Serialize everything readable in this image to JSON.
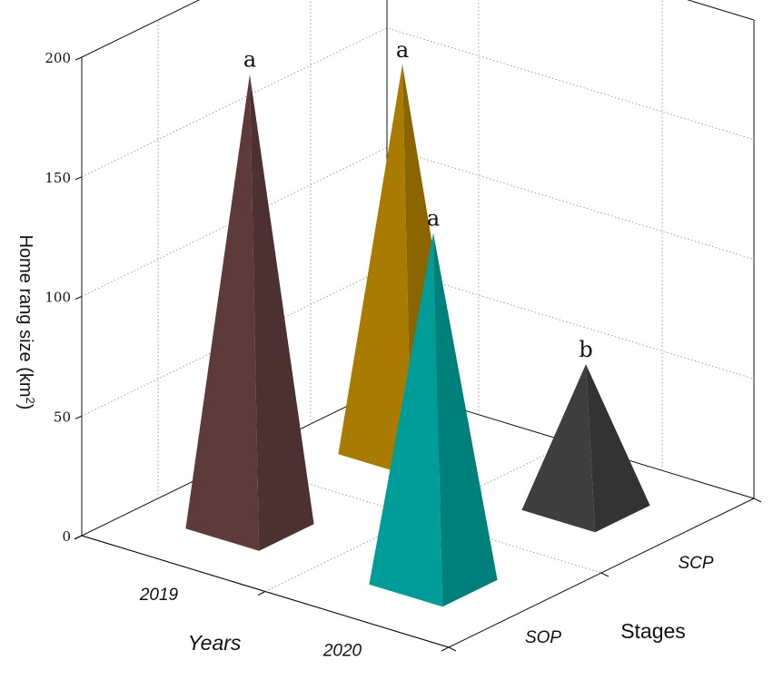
{
  "chart_data": {
    "type": "bar",
    "subtype": "3d-pyramid",
    "title": "",
    "ylabel_main": "Home rang size (km",
    "ylabel_sup": "2",
    "ylabel_tail": ")",
    "zlim": [
      0,
      200
    ],
    "zticks": [
      "0",
      "50",
      "100",
      "150",
      "200"
    ],
    "years_label": "Years",
    "years": [
      "2019",
      "2020"
    ],
    "stages_label": "Stages",
    "stages": [
      "SOP",
      "SCP"
    ],
    "grid": true,
    "bars": [
      {
        "year": "2019",
        "stage": "SOP",
        "value": 189,
        "letter": "a",
        "color": "#5e3a3b"
      },
      {
        "year": "2019",
        "stage": "SCP",
        "value": 162,
        "letter": "a",
        "color": "#a97b00"
      },
      {
        "year": "2020",
        "stage": "SOP",
        "value": 146,
        "letter": "a",
        "color": "#009c98"
      },
      {
        "year": "2020",
        "stage": "SCP",
        "value": 60,
        "letter": "b",
        "color": "#3e3e3e"
      }
    ]
  }
}
